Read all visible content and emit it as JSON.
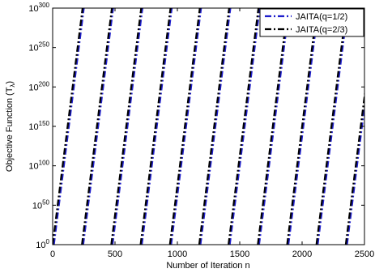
{
  "chart_data": {
    "type": "line",
    "xlabel": "Number of Iteration n",
    "ylabel_main": "Objective Function (T",
    "ylabel_sub": "λ",
    "ylabel_close": ")",
    "xlim": [
      0,
      2500
    ],
    "ylim_exponent": [
      0,
      300
    ],
    "y_scale": "log",
    "grid": false,
    "legend_position": "top-right",
    "x_ticks": [
      0,
      500,
      1000,
      1500,
      2000,
      2500
    ],
    "y_ticks": [
      {
        "base": "10",
        "exp": "0"
      },
      {
        "base": "10",
        "exp": "50"
      },
      {
        "base": "10",
        "exp": "100"
      },
      {
        "base": "10",
        "exp": "150"
      },
      {
        "base": "10",
        "exp": "200"
      },
      {
        "base": "10",
        "exp": "250"
      },
      {
        "base": "10",
        "exp": "300"
      }
    ],
    "series": [
      {
        "name": "JAITA(q=1/2)",
        "color": "#1f1fcc",
        "style": "dash-dot",
        "segments": [
          [
            10,
            250
          ],
          [
            245,
            485
          ],
          [
            480,
            720
          ],
          [
            715,
            955
          ],
          [
            950,
            1190
          ],
          [
            1185,
            1425
          ],
          [
            1420,
            1660
          ],
          [
            1655,
            1895
          ],
          [
            1890,
            2130
          ],
          [
            2125,
            2365
          ],
          [
            2360,
            2600
          ]
        ]
      },
      {
        "name": "JAITA(q=2/3)",
        "color": "#000000",
        "style": "dash-dot",
        "segments": [
          [
            0,
            240
          ],
          [
            235,
            475
          ],
          [
            470,
            710
          ],
          [
            705,
            945
          ],
          [
            940,
            1180
          ],
          [
            1175,
            1415
          ],
          [
            1410,
            1650
          ],
          [
            1645,
            1885
          ],
          [
            1880,
            2120
          ],
          [
            2115,
            2355
          ],
          [
            2350,
            2590
          ]
        ]
      }
    ]
  }
}
